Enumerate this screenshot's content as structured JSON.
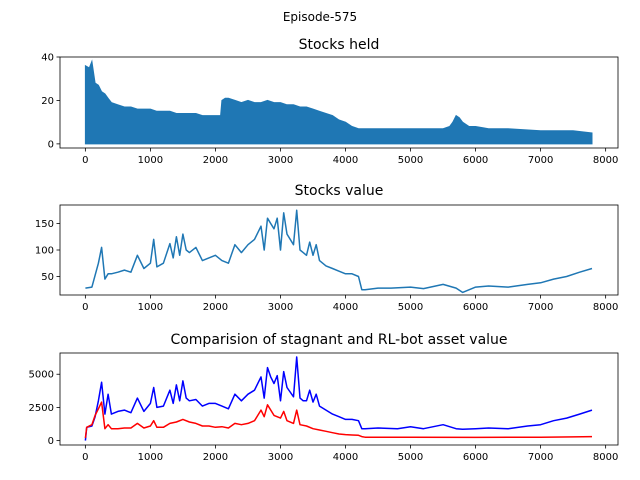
{
  "figure": {
    "suptitle": "Episode-575"
  },
  "chart_data": [
    {
      "type": "bar",
      "title": "Stocks held",
      "xlabel": "",
      "ylabel": "",
      "xlim": [
        -390,
        8190
      ],
      "ylim": [
        -1.9,
        40
      ],
      "xticks": [
        0,
        1000,
        2000,
        3000,
        4000,
        5000,
        6000,
        7000,
        8000
      ],
      "yticks": [
        0,
        20,
        40
      ],
      "grid": false,
      "series": [
        {
          "color": "#1f77b4",
          "x": [
            0,
            60,
            100,
            150,
            200,
            250,
            300,
            350,
            400,
            500,
            600,
            700,
            800,
            900,
            1000,
            1100,
            1200,
            1300,
            1400,
            1500,
            1600,
            1700,
            1800,
            1900,
            2000,
            2080,
            2100,
            2150,
            2200,
            2300,
            2400,
            2500,
            2600,
            2700,
            2800,
            2900,
            3000,
            3100,
            3200,
            3300,
            3400,
            3500,
            3600,
            3700,
            3800,
            3900,
            4000,
            4100,
            4200,
            4300,
            4500,
            5000,
            5500,
            5600,
            5650,
            5700,
            5750,
            5800,
            5900,
            6000,
            6200,
            6500,
            7000,
            7500,
            7790
          ],
          "values": [
            36,
            35,
            38,
            28,
            27,
            24,
            23,
            21,
            19,
            18,
            17,
            17,
            16,
            16,
            16,
            15,
            15,
            15,
            14,
            14,
            14,
            14,
            13,
            13,
            13,
            13,
            20,
            21,
            21,
            20,
            19,
            20,
            19,
            19,
            20,
            19,
            19,
            18,
            18,
            17,
            17,
            16,
            15,
            14,
            13,
            11,
            10,
            8,
            7,
            7,
            7,
            7,
            7,
            8,
            10,
            13,
            12,
            10,
            8,
            8,
            7,
            7,
            6,
            6,
            5
          ]
        }
      ]
    },
    {
      "type": "line",
      "title": "Stocks value",
      "xlabel": "",
      "ylabel": "",
      "xlim": [
        -390,
        8190
      ],
      "ylim": [
        15,
        185
      ],
      "xticks": [
        0,
        1000,
        2000,
        3000,
        4000,
        5000,
        6000,
        7000,
        8000
      ],
      "yticks": [
        50,
        100,
        150
      ],
      "grid": false,
      "series": [
        {
          "color": "#1f77b4",
          "x": [
            0,
            100,
            200,
            250,
            300,
            350,
            400,
            500,
            600,
            700,
            800,
            900,
            1000,
            1050,
            1100,
            1200,
            1300,
            1350,
            1400,
            1450,
            1500,
            1550,
            1600,
            1700,
            1800,
            1900,
            2000,
            2100,
            2200,
            2300,
            2400,
            2500,
            2600,
            2700,
            2750,
            2800,
            2850,
            2900,
            2950,
            3000,
            3050,
            3100,
            3200,
            3250,
            3300,
            3350,
            3400,
            3450,
            3500,
            3550,
            3600,
            3700,
            3800,
            3900,
            4000,
            4100,
            4200,
            4250,
            4300,
            4500,
            4700,
            5000,
            5200,
            5500,
            5700,
            5800,
            6000,
            6200,
            6500,
            6800,
            7000,
            7200,
            7400,
            7600,
            7790
          ],
          "values": [
            28,
            30,
            75,
            105,
            45,
            55,
            55,
            58,
            62,
            58,
            90,
            65,
            75,
            120,
            68,
            75,
            112,
            85,
            125,
            90,
            130,
            100,
            95,
            105,
            80,
            85,
            90,
            80,
            75,
            110,
            95,
            110,
            120,
            145,
            100,
            160,
            150,
            140,
            160,
            100,
            170,
            130,
            110,
            175,
            100,
            95,
            90,
            115,
            90,
            110,
            80,
            70,
            65,
            60,
            55,
            55,
            50,
            25,
            25,
            28,
            28,
            30,
            27,
            35,
            28,
            20,
            30,
            32,
            30,
            35,
            38,
            45,
            50,
            58,
            65
          ]
        }
      ]
    },
    {
      "type": "line",
      "title": "Comparision of stagnant and RL-bot asset value",
      "xlabel": "",
      "ylabel": "",
      "xlim": [
        -390,
        8190
      ],
      "ylim": [
        -330,
        6600
      ],
      "xticks": [
        0,
        1000,
        2000,
        3000,
        4000,
        5000,
        6000,
        7000,
        8000
      ],
      "yticks": [
        0,
        2500,
        5000
      ],
      "grid": false,
      "series": [
        {
          "color": "#0000ff",
          "x": [
            0,
            20,
            100,
            150,
            200,
            250,
            300,
            350,
            400,
            500,
            600,
            700,
            800,
            900,
            1000,
            1050,
            1100,
            1200,
            1300,
            1350,
            1400,
            1450,
            1500,
            1550,
            1600,
            1700,
            1800,
            1900,
            2000,
            2100,
            2200,
            2300,
            2400,
            2500,
            2600,
            2700,
            2750,
            2800,
            2850,
            2900,
            2950,
            3000,
            3050,
            3100,
            3200,
            3250,
            3300,
            3350,
            3400,
            3450,
            3500,
            3550,
            3600,
            3700,
            3800,
            3900,
            4000,
            4100,
            4200,
            4250,
            4300,
            4500,
            4800,
            5000,
            5200,
            5500,
            5700,
            5800,
            6000,
            6200,
            6500,
            6800,
            7000,
            7200,
            7400,
            7600,
            7790
          ],
          "values": [
            0,
            1000,
            1100,
            1800,
            3000,
            4400,
            2000,
            3500,
            2000,
            2200,
            2300,
            2100,
            3200,
            2200,
            2800,
            4000,
            2500,
            2600,
            3800,
            2800,
            4200,
            3000,
            4500,
            3200,
            3000,
            3100,
            2600,
            2800,
            2800,
            2600,
            2400,
            3500,
            3000,
            3500,
            3800,
            4800,
            3200,
            5500,
            4800,
            4300,
            4900,
            3000,
            5200,
            4000,
            3300,
            6300,
            3200,
            3000,
            3000,
            3800,
            2900,
            3500,
            2600,
            2300,
            2000,
            1800,
            1600,
            1600,
            1500,
            900,
            900,
            950,
            900,
            1050,
            900,
            1200,
            900,
            850,
            900,
            950,
            900,
            1100,
            1200,
            1500,
            1700,
            2000,
            2300
          ]
        },
        {
          "color": "#ff0000",
          "x": [
            0,
            20,
            100,
            150,
            200,
            250,
            300,
            350,
            400,
            500,
            600,
            700,
            800,
            900,
            1000,
            1050,
            1100,
            1200,
            1300,
            1400,
            1500,
            1600,
            1700,
            1800,
            1900,
            2000,
            2100,
            2200,
            2300,
            2400,
            2500,
            2600,
            2700,
            2750,
            2800,
            2900,
            3000,
            3050,
            3100,
            3200,
            3250,
            3300,
            3400,
            3500,
            3600,
            3700,
            3800,
            3900,
            4000,
            4100,
            4200,
            4250,
            4300,
            5000,
            6000,
            7000,
            7500,
            7790
          ],
          "values": [
            200,
            1000,
            1200,
            1900,
            2400,
            2900,
            900,
            1200,
            900,
            900,
            950,
            950,
            1300,
            950,
            1100,
            1500,
            1000,
            1000,
            1300,
            1400,
            1600,
            1400,
            1300,
            1100,
            1100,
            1000,
            1050,
            950,
            1300,
            1200,
            1300,
            1500,
            2300,
            1800,
            2700,
            1900,
            1700,
            2200,
            1500,
            1300,
            2300,
            1200,
            1100,
            900,
            800,
            700,
            600,
            500,
            450,
            420,
            400,
            300,
            260,
            250,
            240,
            260,
            280,
            300
          ]
        }
      ]
    }
  ]
}
